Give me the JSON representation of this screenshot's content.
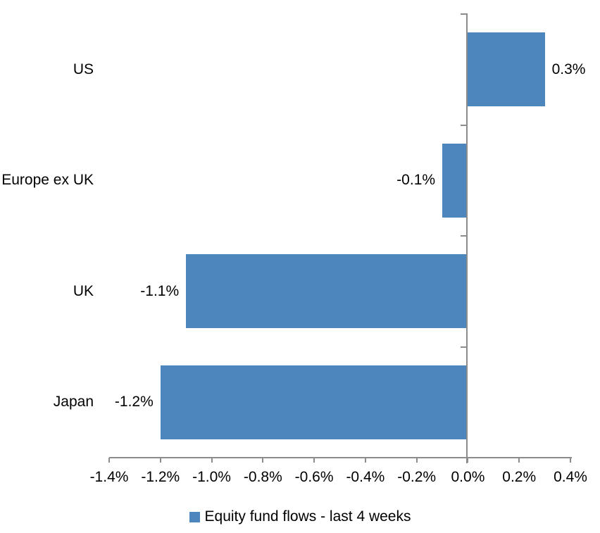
{
  "chart_data": {
    "type": "bar",
    "orientation": "horizontal",
    "title": "",
    "categories": [
      "US",
      "Europe ex UK",
      "UK",
      "Japan"
    ],
    "series": [
      {
        "name": "Equity fund flows - last 4 weeks",
        "values": [
          0.3,
          -0.1,
          -1.1,
          -1.2
        ],
        "data_labels": [
          "0.3%",
          "-0.1%",
          "-1.1%",
          "-1.2%"
        ],
        "color": "#4C86BD"
      }
    ],
    "xlabel": "",
    "ylabel": "",
    "xlim": [
      -1.4,
      0.4
    ],
    "x_ticks": [
      -1.4,
      -1.2,
      -1.0,
      -0.8,
      -0.6,
      -0.4,
      -0.2,
      0.0,
      0.2,
      0.4
    ],
    "x_tick_labels": [
      "-1.4%",
      "-1.2%",
      "-1.0%",
      "-0.8%",
      "-0.6%",
      "-0.4%",
      "-0.2%",
      "0.0%",
      "0.2%",
      "0.4%"
    ],
    "grid": false,
    "legend_position": "bottom",
    "axis_color": "#8C8C8C",
    "text_color": "#000000",
    "background_color": "#FFFFFF"
  },
  "legend": {
    "label": "Equity fund flows - last 4 weeks",
    "swatch_color": "#4C86BD"
  }
}
